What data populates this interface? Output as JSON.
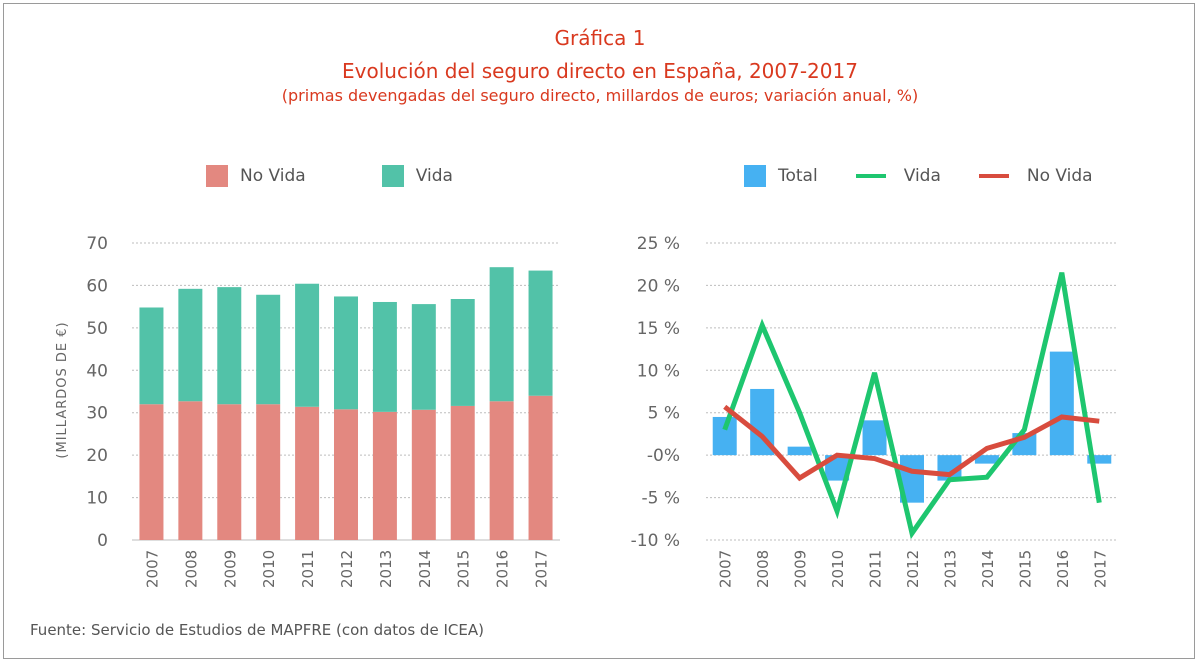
{
  "header": {
    "title": "Gráfica 1",
    "subtitle": "Evolución del seguro directo en España, 2007-2017",
    "note": "(primas devengadas del seguro directo, millardos de euros; variación anual, %)"
  },
  "footer": {
    "source": "Fuente: Servicio de Estudios de MAPFRE (con datos de ICEA)"
  },
  "colors": {
    "no_vida": "#e38880",
    "vida": "#52c2a8",
    "total": "#46b1f2",
    "vida_line": "#1ec66f",
    "no_vida_line": "#d84c3e",
    "title": "#d9391f"
  },
  "chart_data": [
    {
      "type": "bar",
      "stacked": true,
      "categories": [
        "2007",
        "2008",
        "2009",
        "2010",
        "2011",
        "2012",
        "2013",
        "2014",
        "2015",
        "2016",
        "2017"
      ],
      "series": [
        {
          "name": "No Vida",
          "values": [
            32.0,
            32.7,
            32.0,
            32.0,
            31.4,
            30.8,
            30.2,
            30.7,
            31.6,
            32.7,
            34.0
          ]
        },
        {
          "name": "Vida",
          "values": [
            22.8,
            26.5,
            27.6,
            25.8,
            29.0,
            26.6,
            25.9,
            24.9,
            25.2,
            31.6,
            29.5
          ]
        }
      ],
      "ylabel": "(MILLARDOS DE €)",
      "ylim": [
        0,
        70
      ],
      "yticks": [
        "0",
        "10",
        "20",
        "30",
        "40",
        "50",
        "60",
        "70"
      ],
      "grid": true,
      "legend": "top"
    },
    {
      "type": "bar+line",
      "categories": [
        "2007",
        "2008",
        "2009",
        "2010",
        "2011",
        "2012",
        "2013",
        "2014",
        "2015",
        "2016",
        "2017"
      ],
      "series": [
        {
          "name": "Total",
          "kind": "bar",
          "values": [
            4.5,
            7.8,
            1.0,
            -3.0,
            4.1,
            -5.6,
            -3.0,
            -1.0,
            2.6,
            12.2,
            -1.0
          ]
        },
        {
          "name": "Vida",
          "kind": "line",
          "values": [
            3.0,
            15.3,
            5.0,
            -6.6,
            9.7,
            -9.2,
            -2.9,
            -2.6,
            3.0,
            21.5,
            -5.6
          ]
        },
        {
          "name": "No Vida",
          "kind": "line",
          "values": [
            5.7,
            2.2,
            -2.7,
            0.0,
            -0.4,
            -1.9,
            -2.3,
            0.8,
            2.1,
            4.5,
            4.0
          ]
        }
      ],
      "ylim": [
        -10,
        25
      ],
      "yticks": [
        "-10 %",
        "-5 %",
        "-0%",
        "5 %",
        "10 %",
        "15 %",
        "20 %",
        "25 %"
      ],
      "grid": true,
      "legend": "top"
    }
  ]
}
